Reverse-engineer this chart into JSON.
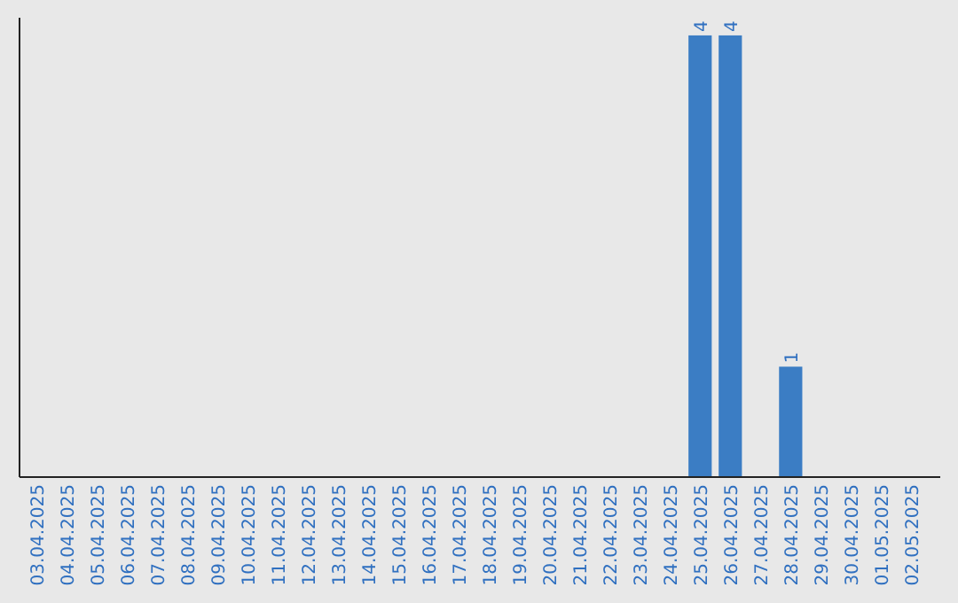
{
  "chart_data": {
    "type": "bar",
    "categories": [
      "03.04.2025",
      "04.04.2025",
      "05.04.2025",
      "06.04.2025",
      "07.04.2025",
      "08.04.2025",
      "09.04.2025",
      "10.04.2025",
      "11.04.2025",
      "12.04.2025",
      "13.04.2025",
      "14.04.2025",
      "15.04.2025",
      "16.04.2025",
      "17.04.2025",
      "18.04.2025",
      "19.04.2025",
      "20.04.2025",
      "21.04.2025",
      "22.04.2025",
      "23.04.2025",
      "24.04.2025",
      "25.04.2025",
      "26.04.2025",
      "27.04.2025",
      "28.04.2025",
      "29.04.2025",
      "30.04.2025",
      "01.05.2025",
      "02.05.2025"
    ],
    "values": [
      null,
      null,
      null,
      null,
      null,
      null,
      null,
      null,
      null,
      null,
      null,
      null,
      null,
      null,
      null,
      null,
      null,
      null,
      null,
      null,
      null,
      null,
      4,
      4,
      null,
      1,
      null,
      null,
      null,
      null
    ],
    "color": "#3b7dc4",
    "data_labels": true,
    "tick_labels": "x"
  }
}
